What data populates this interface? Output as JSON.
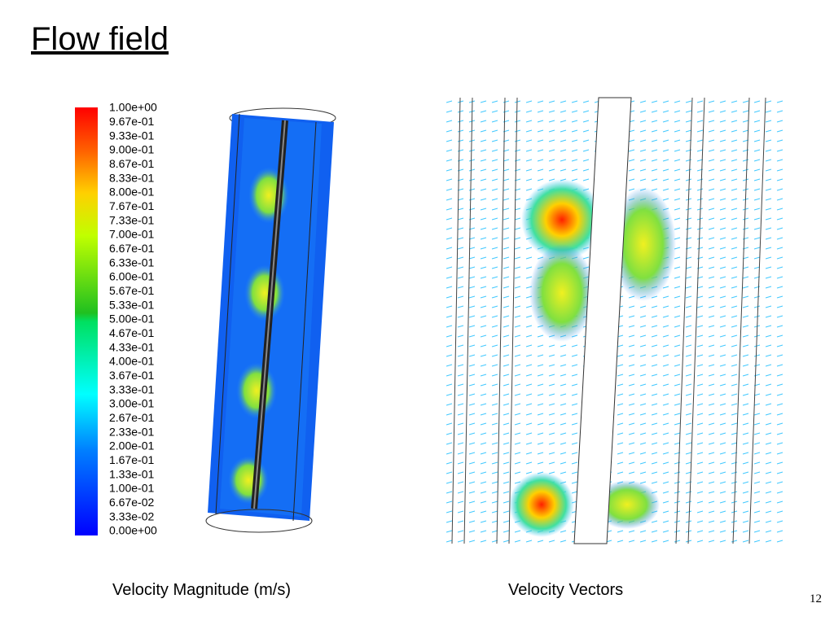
{
  "title": "Flow field",
  "colorbar": {
    "labels": [
      "1.00e+00",
      "9.67e-01",
      "9.33e-01",
      "9.00e-01",
      "8.67e-01",
      "8.33e-01",
      "8.00e-01",
      "7.67e-01",
      "7.33e-01",
      "7.00e-01",
      "6.67e-01",
      "6.33e-01",
      "6.00e-01",
      "5.67e-01",
      "5.33e-01",
      "5.00e-01",
      "4.67e-01",
      "4.33e-01",
      "4.00e-01",
      "3.67e-01",
      "3.33e-01",
      "3.00e-01",
      "2.67e-01",
      "2.33e-01",
      "2.00e-01",
      "1.67e-01",
      "1.33e-01",
      "1.00e-01",
      "6.67e-02",
      "3.33e-02",
      "0.00e+00"
    ]
  },
  "captions": {
    "left": "Velocity Magnitude (m/s)",
    "right": "Velocity Vectors"
  },
  "page_number": "12"
}
